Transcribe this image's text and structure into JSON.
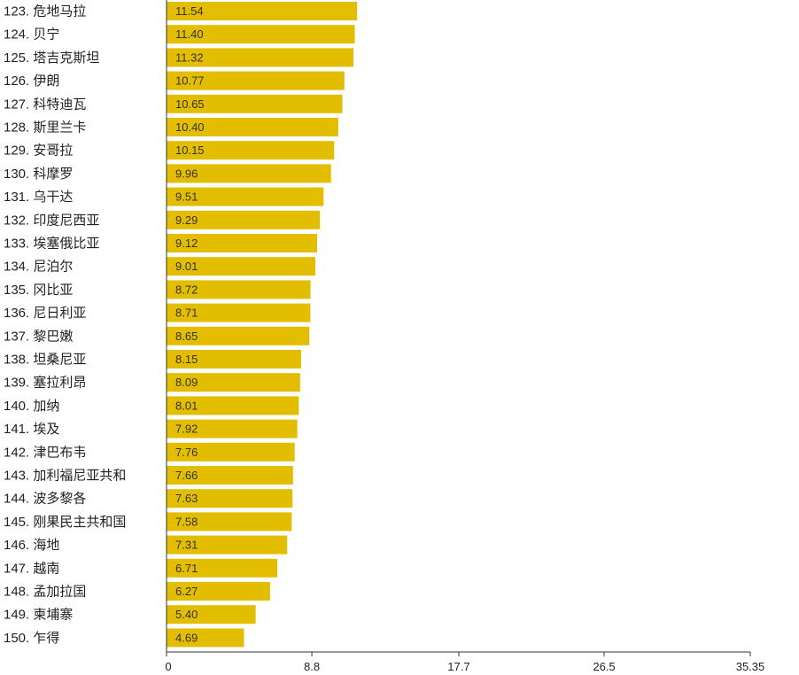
{
  "chart_data": {
    "type": "bar",
    "orientation": "horizontal",
    "categories": [
      "123. 危地马拉",
      "124. 贝宁",
      "125. 塔吉克斯坦",
      "126. 伊朗",
      "127. 科特迪瓦",
      "128. 斯里兰卡",
      "129. 安哥拉",
      "130. 科摩罗",
      "131. 乌干达",
      "132. 印度尼西亚",
      "133. 埃塞俄比亚",
      "134. 尼泊尔",
      "135. 冈比亚",
      "136. 尼日利亚",
      "137. 黎巴嫩",
      "138. 坦桑尼亚",
      "139. 塞拉利昂",
      "140. 加纳",
      "141. 埃及",
      "142. 津巴布韦",
      "143. 加利福尼亚共和",
      "144. 波多黎各",
      "145. 刚果民主共和国",
      "146. 海地",
      "147. 越南",
      "148. 孟加拉国",
      "149. 柬埔寨",
      "150. 乍得"
    ],
    "values": [
      11.54,
      11.4,
      11.32,
      10.77,
      10.65,
      10.4,
      10.15,
      9.96,
      9.51,
      9.29,
      9.12,
      9.01,
      8.72,
      8.71,
      8.65,
      8.15,
      8.09,
      8.01,
      7.92,
      7.76,
      7.66,
      7.63,
      7.58,
      7.31,
      6.71,
      6.27,
      5.4,
      4.69
    ],
    "value_labels": [
      "11.54",
      "11.40",
      "11.32",
      "10.77",
      "10.65",
      "10.40",
      "10.15",
      "9.96",
      "9.51",
      "9.29",
      "9.12",
      "9.01",
      "8.72",
      "8.71",
      "8.65",
      "8.15",
      "8.09",
      "8.01",
      "7.92",
      "7.76",
      "7.66",
      "7.63",
      "7.58",
      "7.31",
      "6.71",
      "6.27",
      "5.40",
      "4.69"
    ],
    "xlim": [
      0,
      35.35
    ],
    "x_ticks": [
      "0",
      "8.8",
      "17.7",
      "26.5",
      "35.35"
    ],
    "title": "",
    "xlabel": "",
    "ylabel": "",
    "grid": false,
    "bar_color": "#E3BE00",
    "axis_color": "#333333"
  }
}
